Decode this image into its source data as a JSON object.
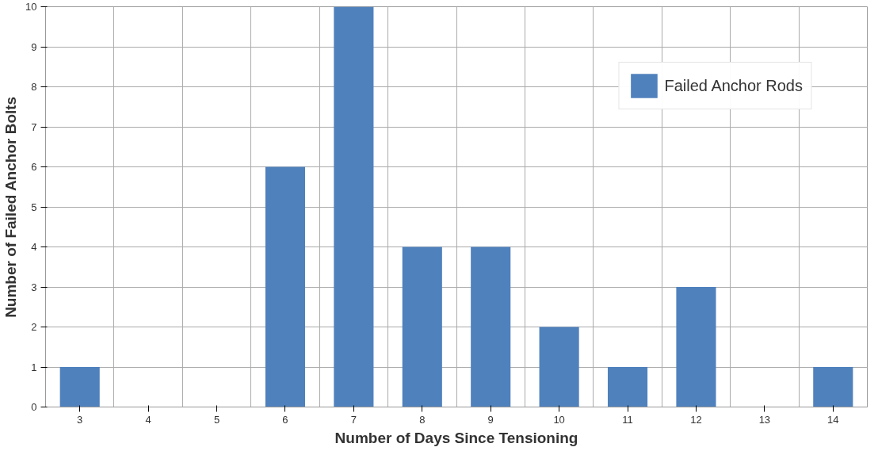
{
  "chart_data": {
    "type": "bar",
    "xlabel": "Number of Days Since Tensioning",
    "ylabel": "Number of Failed Anchor Bolts",
    "categories": [
      "3",
      "4",
      "5",
      "6",
      "7",
      "8",
      "9",
      "10",
      "11",
      "12",
      "13",
      "14"
    ],
    "series": [
      {
        "name": "Failed Anchor Rods",
        "color": "#4f81bd",
        "values": [
          1,
          0,
          0,
          6,
          10,
          4,
          4,
          2,
          1,
          3,
          0,
          1
        ]
      }
    ],
    "ylim": [
      0,
      10
    ],
    "yticks": [
      0,
      1,
      2,
      3,
      4,
      5,
      6,
      7,
      8,
      9,
      10
    ],
    "grid": true,
    "legend": "top right"
  }
}
